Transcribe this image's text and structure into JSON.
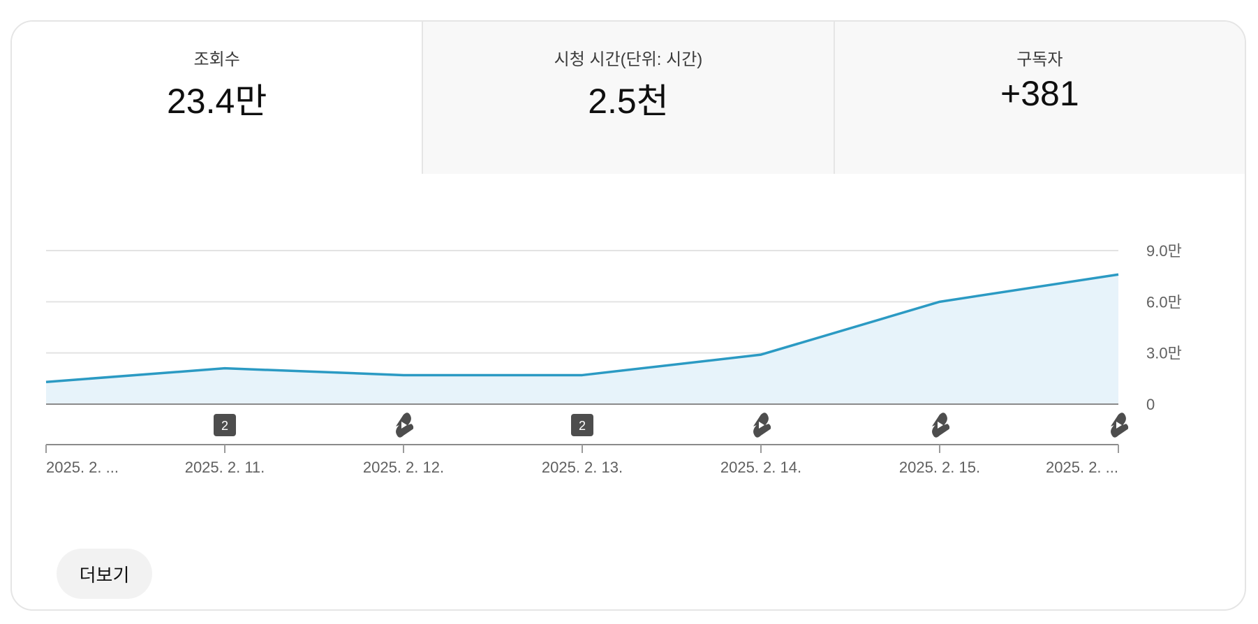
{
  "tabs": [
    {
      "label": "조회수",
      "value": "23.4만",
      "selected": true
    },
    {
      "label": "시청 시간(단위: 시간)",
      "value": "2.5천",
      "selected": false
    },
    {
      "label": "구독자",
      "value": "+381",
      "selected": false
    }
  ],
  "more_button": "더보기",
  "chart_data": {
    "type": "area",
    "title": "",
    "xlabel": "",
    "ylabel": "",
    "x": [
      "2025. 2. ...",
      "2025. 2. 11.",
      "2025. 2. 12.",
      "2025. 2. 13.",
      "2025. 2. 14.",
      "2025. 2. 15.",
      "2025. 2. ..."
    ],
    "series": [
      {
        "values": [
          13000,
          21000,
          17000,
          17000,
          29000,
          60000,
          76000
        ]
      }
    ],
    "y_ticks": [
      {
        "value": 0,
        "label": "0"
      },
      {
        "value": 30000,
        "label": "3.0만"
      },
      {
        "value": 60000,
        "label": "6.0만"
      },
      {
        "value": 90000,
        "label": "9.0만"
      }
    ],
    "ylim": [
      0,
      90000
    ],
    "grid": true,
    "y_axis_side": "right",
    "line_color": "#2b9ac3",
    "fill_color": "#e7f3fa",
    "markers": [
      {
        "x_index": 1,
        "kind": "badge",
        "label": "2"
      },
      {
        "x_index": 2,
        "kind": "shorts-icon"
      },
      {
        "x_index": 3,
        "kind": "badge",
        "label": "2"
      },
      {
        "x_index": 4,
        "kind": "shorts-icon"
      },
      {
        "x_index": 5,
        "kind": "shorts-icon"
      },
      {
        "x_index": 6,
        "kind": "shorts-icon"
      }
    ]
  }
}
